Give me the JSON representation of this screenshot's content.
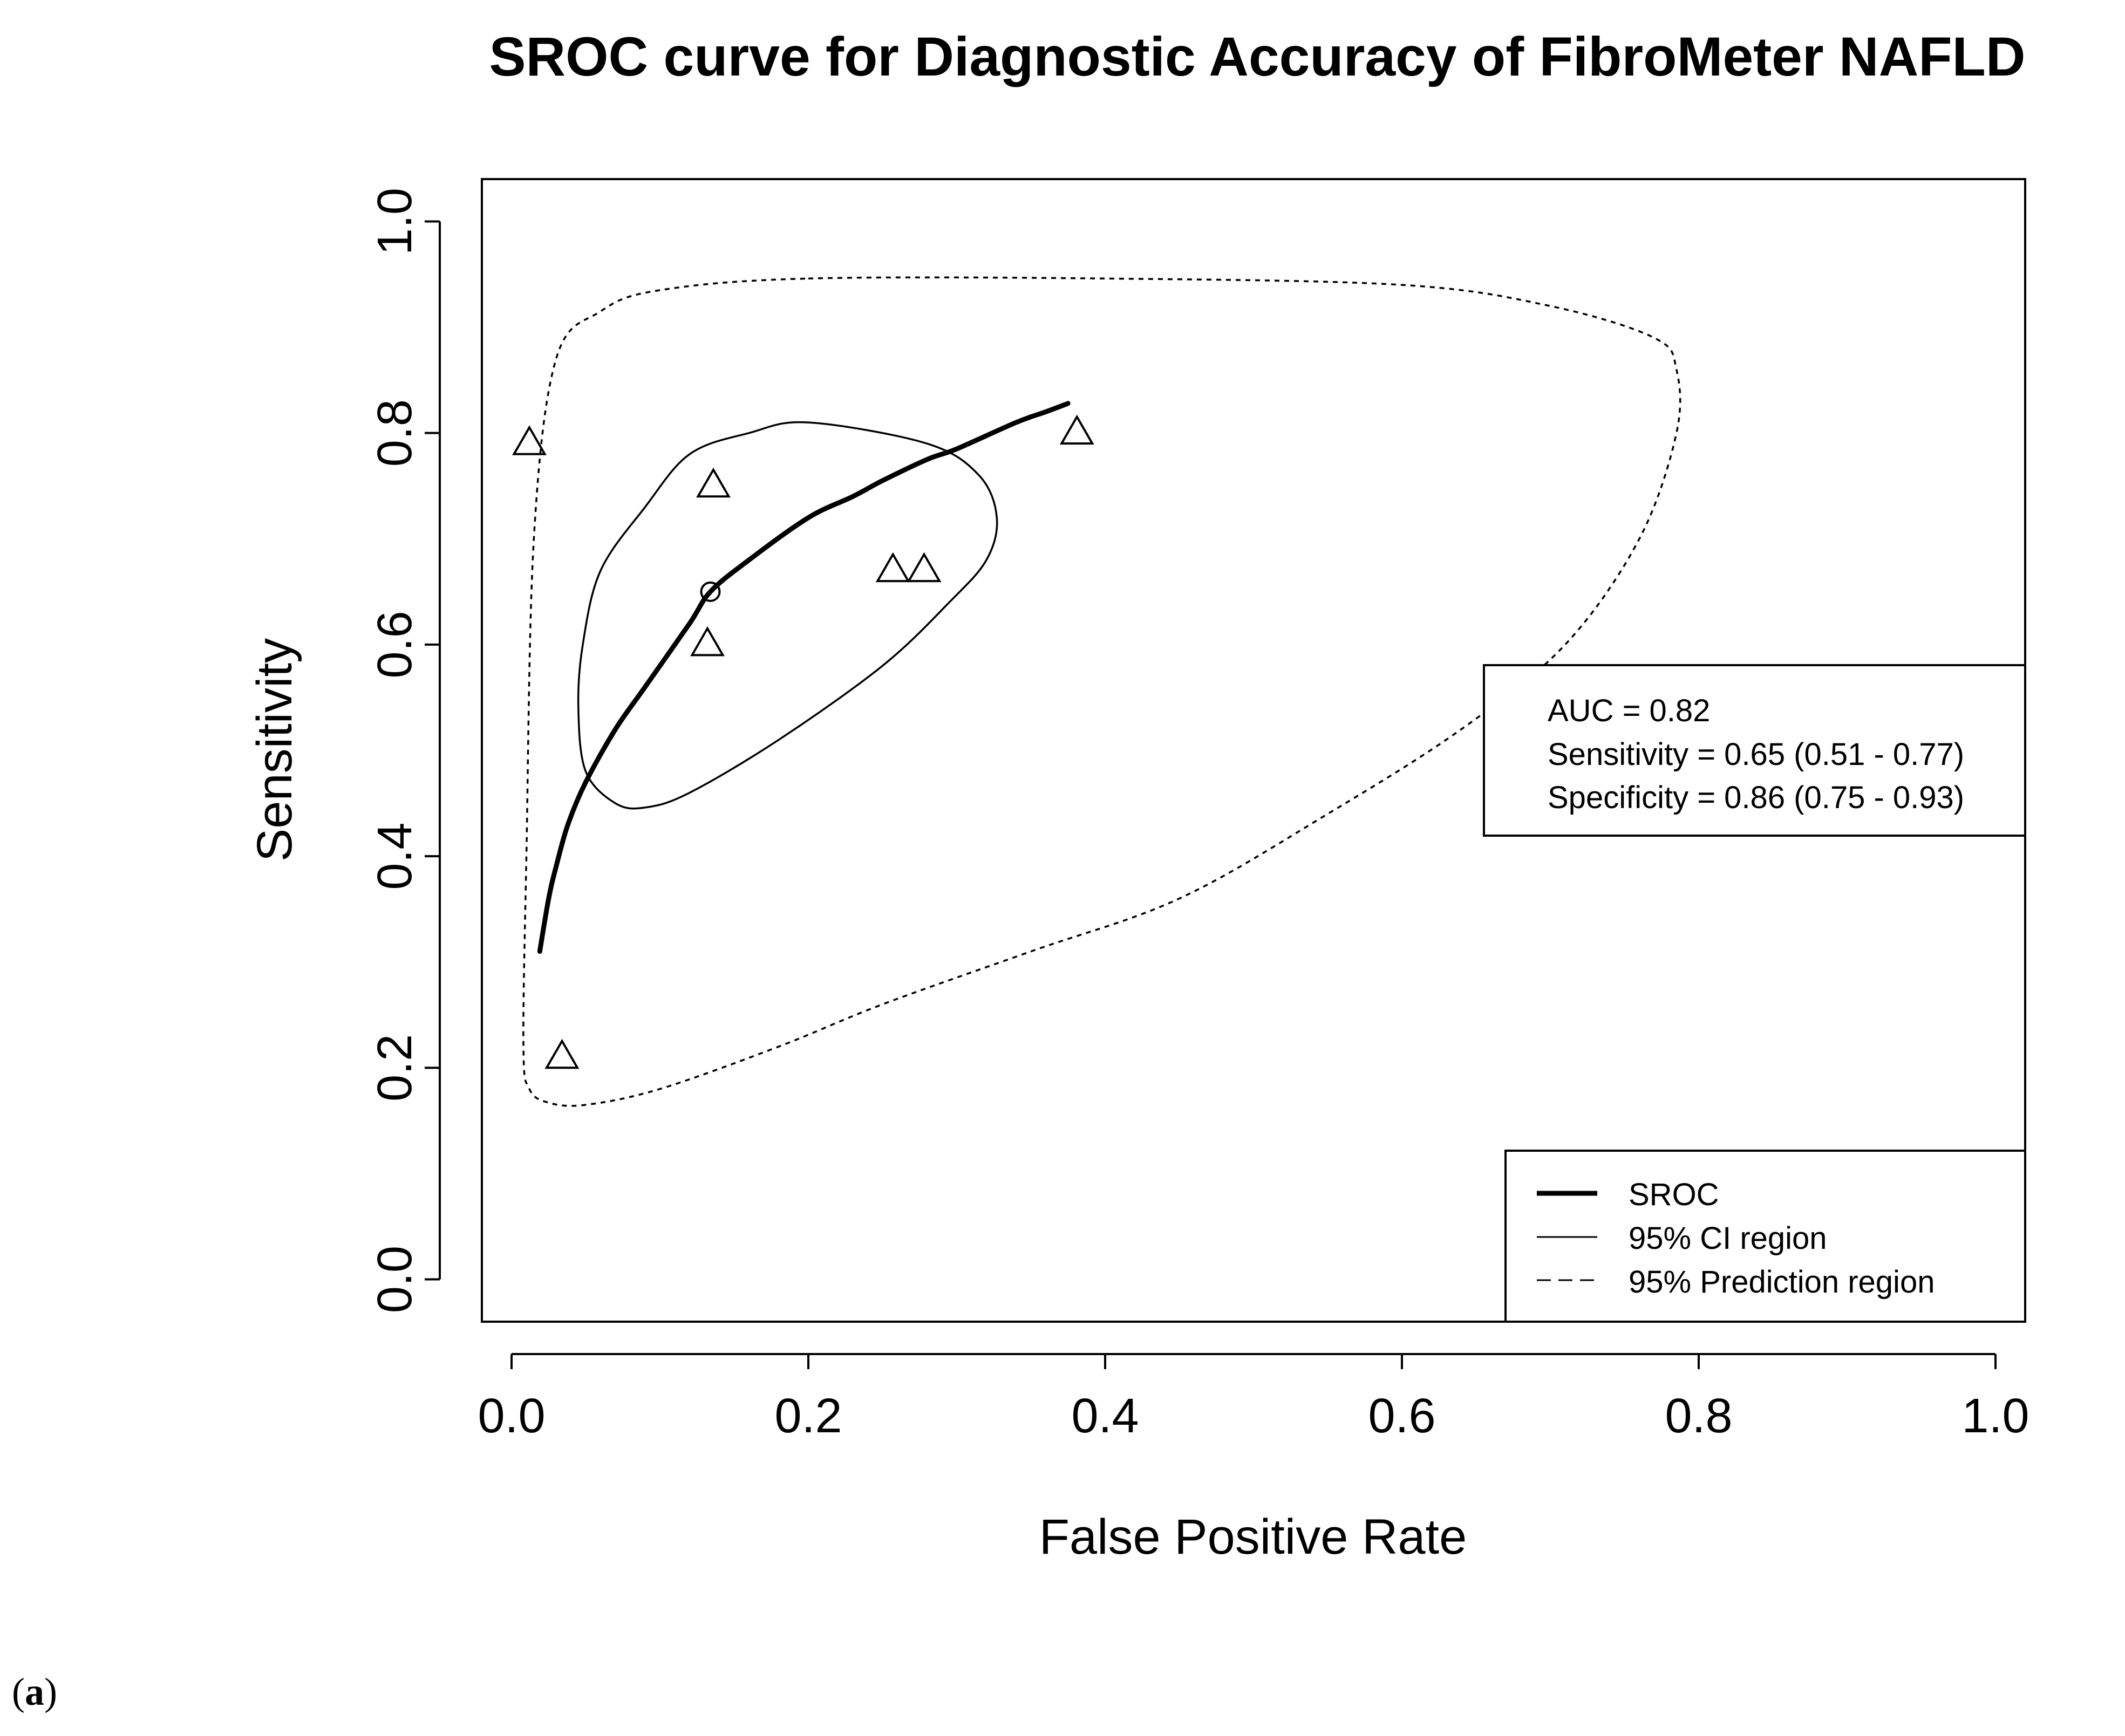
{
  "chart_data": {
    "type": "scatter",
    "title": "SROC curve for Diagnostic Accuracy of FibroMeter NAFLD",
    "xlabel": "False Positive Rate",
    "ylabel": "Sensitivity",
    "xlim": [
      -0.02,
      1.02
    ],
    "ylim": [
      -0.04,
      1.04
    ],
    "xticks": [
      "0.0",
      "0.2",
      "0.4",
      "0.6",
      "0.8",
      "1.0"
    ],
    "yticks": [
      "0.0",
      "0.2",
      "0.4",
      "0.6",
      "0.8",
      "1.0"
    ],
    "grid": false,
    "study_points": {
      "name": "Studies",
      "marker": "triangle",
      "x": [
        0.012,
        0.136,
        0.132,
        0.257,
        0.278,
        0.381,
        0.034
      ],
      "y": [
        0.79,
        0.75,
        0.6,
        0.67,
        0.67,
        0.8,
        0.21
      ]
    },
    "summary_point": {
      "x": 0.134,
      "y": 0.65
    },
    "sroc_curve": {
      "name": "SROC",
      "x": [
        0.019,
        0.025,
        0.03,
        0.038,
        0.05,
        0.07,
        0.09,
        0.12,
        0.134,
        0.16,
        0.2,
        0.23,
        0.25,
        0.28,
        0.3,
        0.34,
        0.36,
        0.375
      ],
      "y": [
        0.31,
        0.36,
        0.39,
        0.43,
        0.47,
        0.52,
        0.56,
        0.62,
        0.65,
        0.68,
        0.72,
        0.74,
        0.755,
        0.775,
        0.785,
        0.81,
        0.82,
        0.828
      ]
    },
    "ci_region": {
      "name": "95% CI region",
      "x": [
        0.2,
        0.28,
        0.315,
        0.327,
        0.32,
        0.295,
        0.25,
        0.18,
        0.12,
        0.09,
        0.07,
        0.05,
        0.045,
        0.048,
        0.06,
        0.09,
        0.12,
        0.16,
        0.2
      ],
      "y": [
        0.81,
        0.79,
        0.76,
        0.72,
        0.68,
        0.64,
        0.58,
        0.51,
        0.46,
        0.446,
        0.45,
        0.48,
        0.54,
        0.6,
        0.67,
        0.73,
        0.78,
        0.8,
        0.81
      ]
    },
    "prediction_region": {
      "name": "95% Prediction region",
      "x": [
        0.2,
        0.4,
        0.6,
        0.7,
        0.77,
        0.785,
        0.785,
        0.76,
        0.71,
        0.64,
        0.55,
        0.45,
        0.35,
        0.25,
        0.18,
        0.1,
        0.05,
        0.025,
        0.012,
        0.008,
        0.01,
        0.015,
        0.03,
        0.06,
        0.1,
        0.2
      ],
      "y": [
        0.946,
        0.946,
        0.94,
        0.92,
        0.89,
        0.86,
        0.8,
        0.7,
        0.6,
        0.52,
        0.44,
        0.36,
        0.31,
        0.26,
        0.22,
        0.18,
        0.165,
        0.167,
        0.18,
        0.22,
        0.4,
        0.7,
        0.87,
        0.915,
        0.935,
        0.946
      ]
    },
    "stats_box": {
      "auc": "AUC = 0.82",
      "sensitivity": "Sensitivity = 0.65 (0.51 - 0.77)",
      "specificity": "Specificity = 0.86 (0.75 - 0.93)"
    },
    "legend": {
      "placement": "bottom-right",
      "items": [
        "SROC",
        "95% CI region",
        "95% Prediction region"
      ]
    }
  },
  "panel_label": {
    "open": "(",
    "letter": "a",
    "close": ")"
  }
}
